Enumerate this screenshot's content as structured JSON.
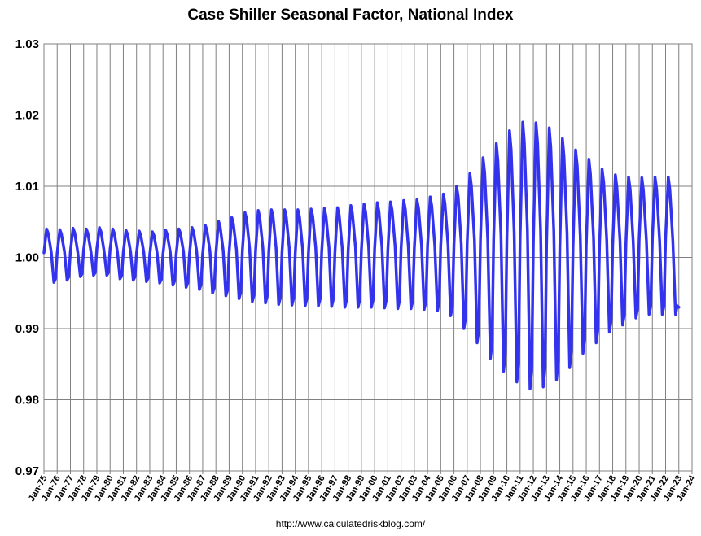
{
  "chart_data": {
    "type": "line",
    "title": "Case Shiller Seasonal Factor, National Index",
    "xlabel": "",
    "ylabel": "",
    "source": "http://www.calculatedriskblog.com/",
    "ylim": [
      0.97,
      1.03
    ],
    "y_ticks": [
      "0.97",
      "0.98",
      "0.99",
      "1.00",
      "1.01",
      "1.02",
      "1.03"
    ],
    "x_range": [
      "1975-01",
      "2024-01"
    ],
    "x_ticks": [
      "Jan-75",
      "Jan-76",
      "Jan-77",
      "Jan-78",
      "Jan-79",
      "Jan-80",
      "Jan-81",
      "Jan-82",
      "Jan-83",
      "Jan-84",
      "Jan-85",
      "Jan-86",
      "Jan-87",
      "Jan-88",
      "Jan-89",
      "Jan-90",
      "Jan-91",
      "Jan-92",
      "Jan-93",
      "Jan-94",
      "Jan-95",
      "Jan-96",
      "Jan-97",
      "Jan-98",
      "Jan-99",
      "Jan-00",
      "Jan-01",
      "Jan-02",
      "Jan-03",
      "Jan-04",
      "Jan-05",
      "Jan-06",
      "Jan-07",
      "Jan-08",
      "Jan-09",
      "Jan-10",
      "Jan-11",
      "Jan-12",
      "Jan-13",
      "Jan-14",
      "Jan-15",
      "Jan-16",
      "Jan-17",
      "Jan-18",
      "Jan-19",
      "Jan-20",
      "Jan-21",
      "Jan-22",
      "Jan-23",
      "Jan-24"
    ],
    "grid": true,
    "series_color": "#3333ee",
    "line_pattern": "monthly seasonal cycle: peak near mid-year, trough near year end; values listed are the annual peak and trough per year",
    "series": [
      {
        "years": [
          1975,
          1976,
          1977,
          1978,
          1979,
          1980,
          1981,
          1982,
          1983,
          1984,
          1985,
          1986,
          1987,
          1988,
          1989,
          1990,
          1991,
          1992,
          1993,
          1994,
          1995,
          1996,
          1997,
          1998,
          1999,
          2000,
          2001,
          2002,
          2003,
          2004,
          2005,
          2006,
          2007,
          2008,
          2009,
          2010,
          2011,
          2012,
          2013,
          2014,
          2015,
          2016,
          2017,
          2018,
          2019,
          2020,
          2021,
          2022
        ],
        "peak": [
          1.004,
          1.0039,
          1.0041,
          1.004,
          1.0042,
          1.004,
          1.0038,
          1.0037,
          1.0036,
          1.0038,
          1.004,
          1.0042,
          1.0045,
          1.0051,
          1.0056,
          1.0063,
          1.0066,
          1.0067,
          1.0067,
          1.0067,
          1.0068,
          1.0069,
          1.007,
          1.0073,
          1.0075,
          1.0077,
          1.0078,
          1.008,
          1.0081,
          1.0085,
          1.0089,
          1.01,
          1.0118,
          1.014,
          1.016,
          1.0178,
          1.019,
          1.0189,
          1.0182,
          1.0167,
          1.0151,
          1.0138,
          1.0124,
          1.0116,
          1.0113,
          1.0112,
          1.0113,
          1.0113
        ],
        "trough": [
          0.9965,
          0.9968,
          0.9973,
          0.9975,
          0.9975,
          0.997,
          0.9968,
          0.9966,
          0.9964,
          0.9961,
          0.9958,
          0.9955,
          0.995,
          0.9946,
          0.9942,
          0.9938,
          0.9936,
          0.9934,
          0.9933,
          0.9932,
          0.9932,
          0.9931,
          0.993,
          0.993,
          0.993,
          0.9929,
          0.9928,
          0.9928,
          0.9927,
          0.9925,
          0.9918,
          0.99,
          0.988,
          0.9858,
          0.984,
          0.9825,
          0.9815,
          0.9818,
          0.9828,
          0.9845,
          0.9865,
          0.988,
          0.9895,
          0.9905,
          0.9915,
          0.992,
          0.992,
          0.992
        ],
        "end_value": 0.993
      }
    ]
  }
}
